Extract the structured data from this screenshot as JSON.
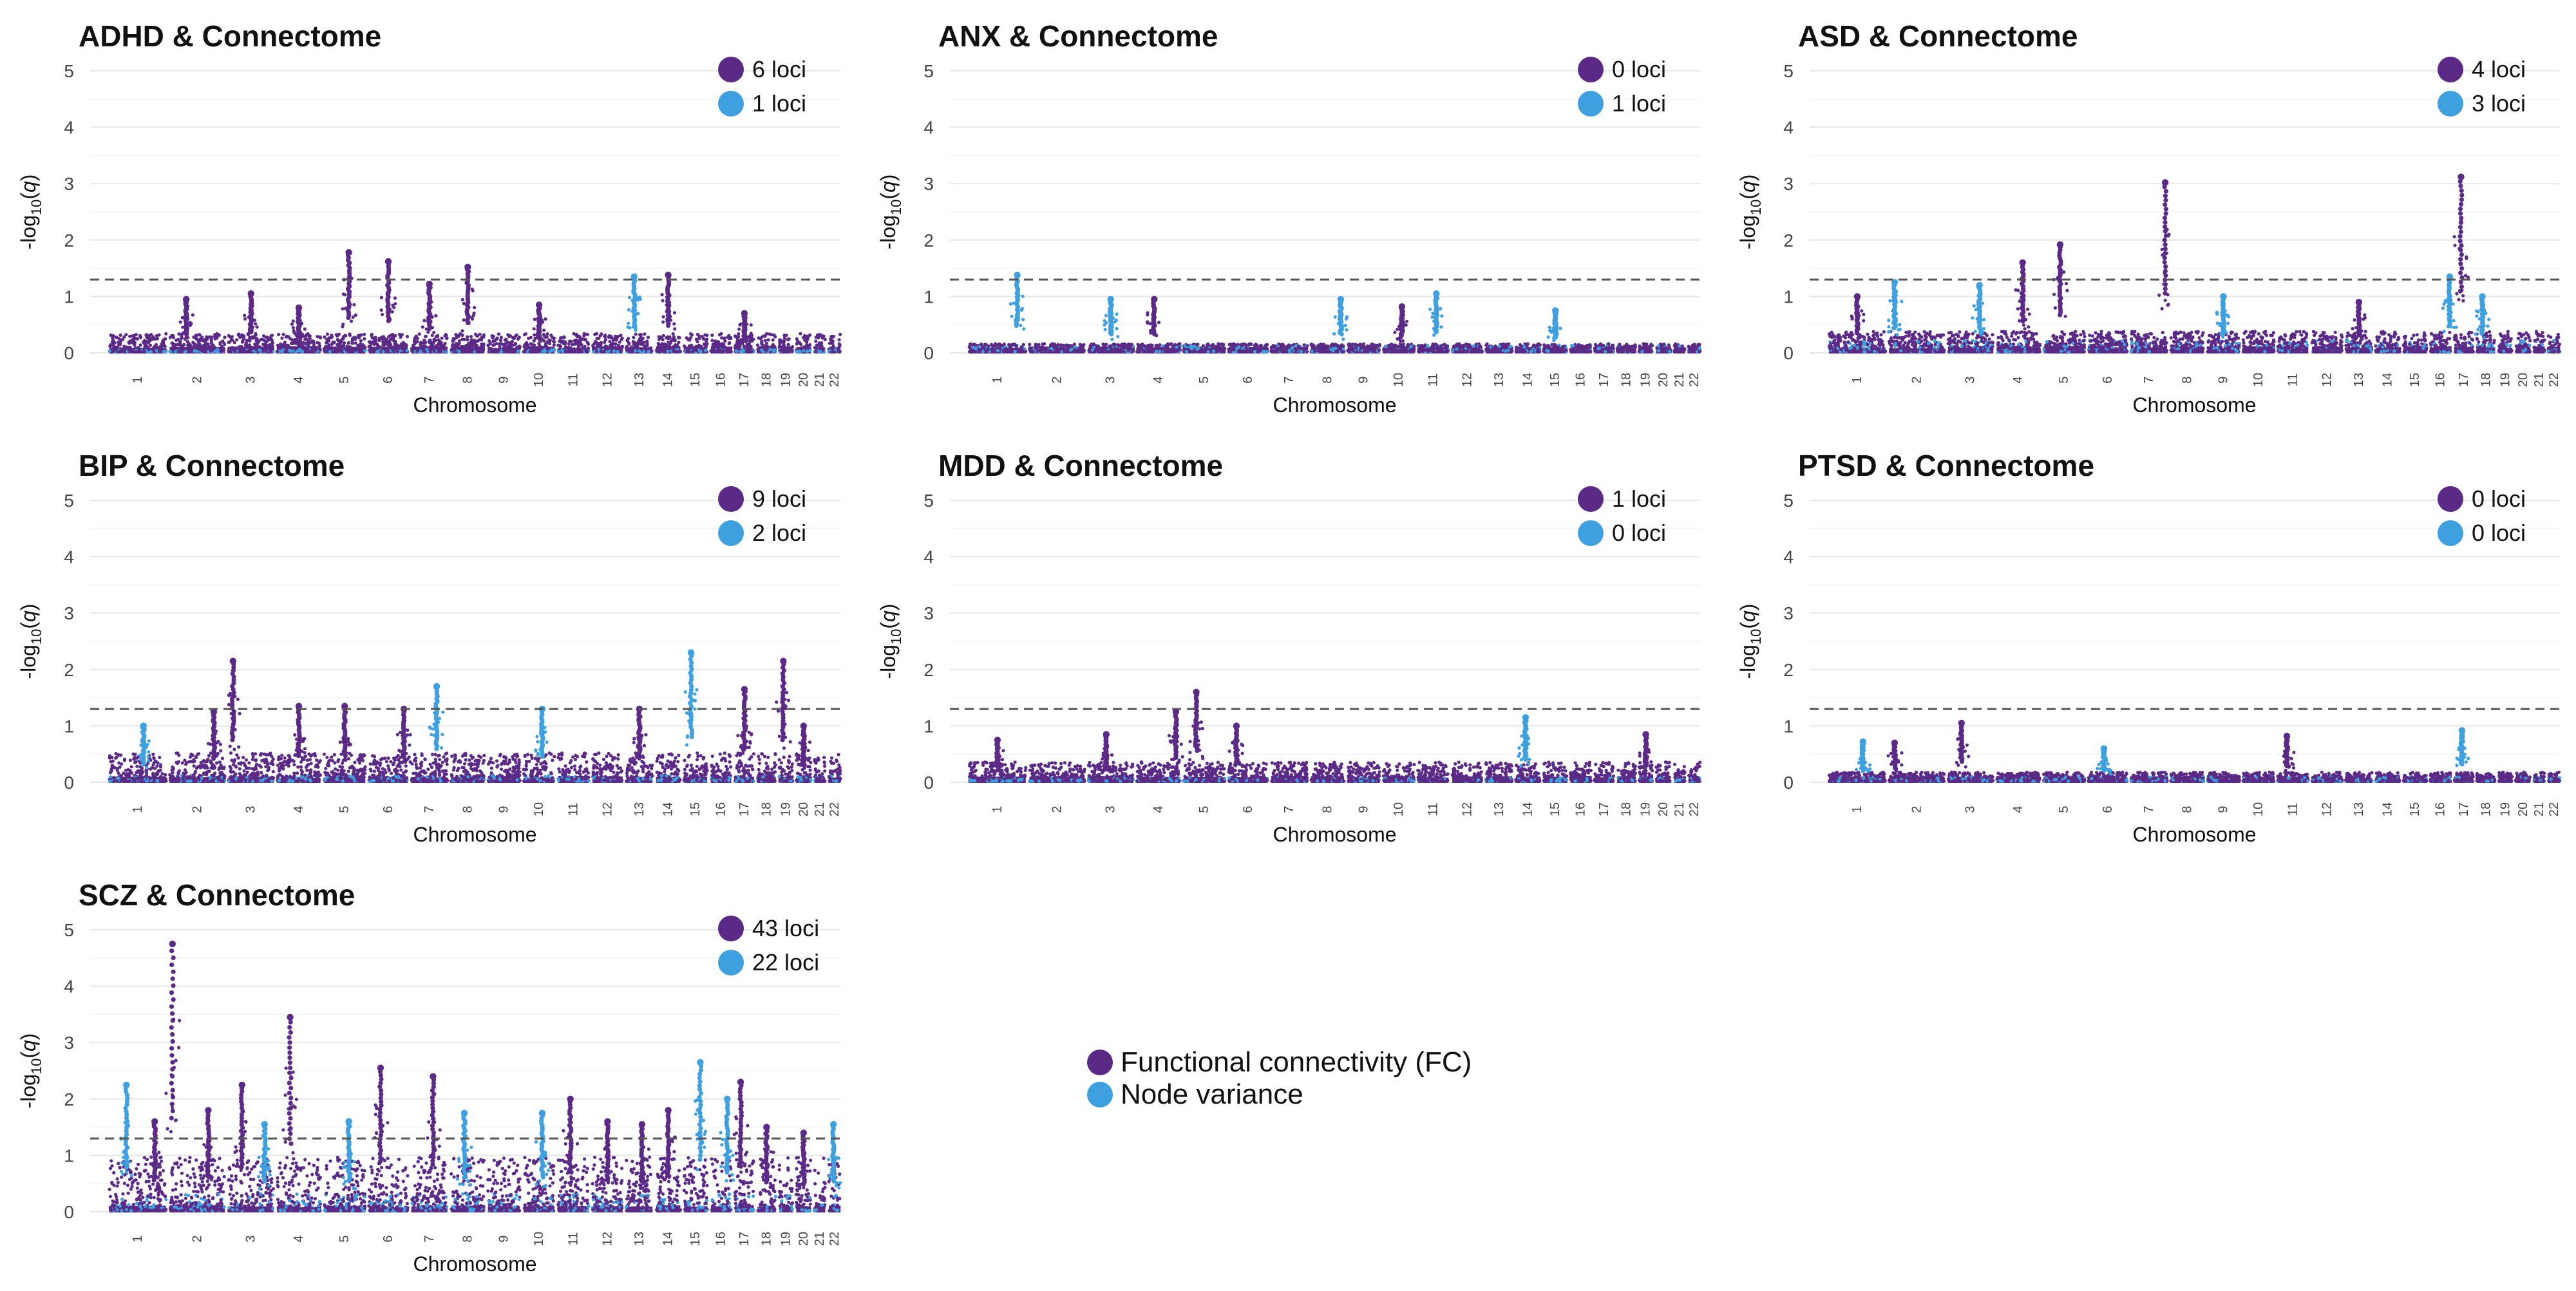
{
  "figure": {
    "shared_axes": {
      "ylabel_prefix": "-log",
      "ylabel_sub": "10",
      "ylabel_open": "(",
      "ylabel_var": "q",
      "ylabel_close": ")",
      "xlabel": "Chromosome",
      "yticks": [
        0,
        1,
        2,
        3,
        4,
        5
      ],
      "ylim": [
        0,
        5
      ],
      "chromosomes": [
        "1",
        "2",
        "3",
        "4",
        "5",
        "6",
        "7",
        "8",
        "9",
        "10",
        "11",
        "12",
        "13",
        "14",
        "15",
        "16",
        "17",
        "18",
        "19",
        "20",
        "21",
        "22"
      ],
      "threshold": 1.3
    },
    "legend": {
      "items": [
        {
          "label": "Functional connectivity (FC)",
          "color": "#5b2a86"
        },
        {
          "label": "Node variance",
          "color": "#3fa0e0"
        }
      ]
    }
  },
  "chart_data": [
    {
      "type": "scatter",
      "title": "ADHD & Connectome",
      "xlabel": "Chromosome",
      "ylabel": "-log10(q)",
      "ylim": [
        0,
        5
      ],
      "threshold": 1.3,
      "legend": [
        {
          "label": "6 loci",
          "color": "#5b2a86"
        },
        {
          "label": "1 loci",
          "color": "#3fa0e0"
        }
      ],
      "noise": {
        "fc": 0.32,
        "nv": 0.04
      },
      "peaks": [
        {
          "chr": 2,
          "pos": 0.3,
          "value": 0.95,
          "series": "fc"
        },
        {
          "chr": 3,
          "pos": 0.5,
          "value": 1.05,
          "series": "fc"
        },
        {
          "chr": 4,
          "pos": 0.5,
          "value": 0.8,
          "series": "fc"
        },
        {
          "chr": 5,
          "pos": 0.6,
          "value": 1.78,
          "series": "fc"
        },
        {
          "chr": 6,
          "pos": 0.5,
          "value": 1.62,
          "series": "fc"
        },
        {
          "chr": 7,
          "pos": 0.5,
          "value": 1.22,
          "series": "fc"
        },
        {
          "chr": 8,
          "pos": 0.5,
          "value": 1.52,
          "series": "fc"
        },
        {
          "chr": 10,
          "pos": 0.5,
          "value": 0.85,
          "series": "fc"
        },
        {
          "chr": 13,
          "pos": 0.3,
          "value": 1.35,
          "series": "nv"
        },
        {
          "chr": 14,
          "pos": 0.5,
          "value": 1.38,
          "series": "fc"
        },
        {
          "chr": 17,
          "pos": 0.5,
          "value": 0.7,
          "series": "fc"
        }
      ]
    },
    {
      "type": "scatter",
      "title": "ANX & Connectome",
      "xlabel": "Chromosome",
      "ylabel": "-log10(q)",
      "ylim": [
        0,
        5
      ],
      "threshold": 1.3,
      "legend": [
        {
          "label": "0 loci",
          "color": "#5b2a86"
        },
        {
          "label": "1 loci",
          "color": "#3fa0e0"
        }
      ],
      "noise": {
        "fc": 0.14,
        "nv": 0.12
      },
      "peaks": [
        {
          "chr": 1,
          "pos": 0.85,
          "value": 1.38,
          "series": "nv"
        },
        {
          "chr": 3,
          "pos": 0.5,
          "value": 0.95,
          "series": "nv"
        },
        {
          "chr": 4,
          "pos": 0.4,
          "value": 0.95,
          "series": "fc"
        },
        {
          "chr": 8,
          "pos": 0.9,
          "value": 0.95,
          "series": "nv"
        },
        {
          "chr": 10,
          "pos": 0.6,
          "value": 0.82,
          "series": "fc"
        },
        {
          "chr": 11,
          "pos": 0.6,
          "value": 1.05,
          "series": "nv"
        },
        {
          "chr": 15,
          "pos": 0.5,
          "value": 0.75,
          "series": "nv"
        }
      ]
    },
    {
      "type": "scatter",
      "title": "ASD & Connectome",
      "xlabel": "Chromosome",
      "ylabel": "-log10(q)",
      "ylim": [
        0,
        5
      ],
      "threshold": 1.3,
      "legend": [
        {
          "label": "4 loci",
          "color": "#5b2a86"
        },
        {
          "label": "3 loci",
          "color": "#3fa0e0"
        }
      ],
      "noise": {
        "fc": 0.36,
        "nv": 0.2
      },
      "peaks": [
        {
          "chr": 1,
          "pos": 0.5,
          "value": 1.0,
          "series": "fc"
        },
        {
          "chr": 2,
          "pos": 0.1,
          "value": 1.25,
          "series": "nv"
        },
        {
          "chr": 3,
          "pos": 0.7,
          "value": 1.2,
          "series": "nv"
        },
        {
          "chr": 4,
          "pos": 0.6,
          "value": 1.6,
          "series": "fc"
        },
        {
          "chr": 5,
          "pos": 0.4,
          "value": 1.92,
          "series": "fc"
        },
        {
          "chr": 7,
          "pos": 0.95,
          "value": 3.02,
          "series": "fc"
        },
        {
          "chr": 9,
          "pos": 0.5,
          "value": 1.0,
          "series": "nv"
        },
        {
          "chr": 13,
          "pos": 0.5,
          "value": 0.9,
          "series": "fc"
        },
        {
          "chr": 16,
          "pos": 0.95,
          "value": 1.35,
          "series": "nv"
        },
        {
          "chr": 17,
          "pos": 0.35,
          "value": 3.12,
          "series": "fc"
        },
        {
          "chr": 18,
          "pos": 0.3,
          "value": 1.0,
          "series": "nv"
        }
      ]
    },
    {
      "type": "scatter",
      "title": "BIP & Connectome",
      "xlabel": "Chromosome",
      "ylabel": "-log10(q)",
      "ylim": [
        0,
        5
      ],
      "threshold": 1.3,
      "legend": [
        {
          "label": "9 loci",
          "color": "#5b2a86"
        },
        {
          "label": "2 loci",
          "color": "#3fa0e0"
        }
      ],
      "noise": {
        "fc": 0.5,
        "nv": 0.1
      },
      "peaks": [
        {
          "chr": 1,
          "pos": 0.6,
          "value": 1.0,
          "series": "nv"
        },
        {
          "chr": 2,
          "pos": 0.8,
          "value": 1.25,
          "series": "fc"
        },
        {
          "chr": 3,
          "pos": 0.1,
          "value": 2.15,
          "series": "fc"
        },
        {
          "chr": 4,
          "pos": 0.5,
          "value": 1.35,
          "series": "fc"
        },
        {
          "chr": 5,
          "pos": 0.5,
          "value": 1.35,
          "series": "fc"
        },
        {
          "chr": 6,
          "pos": 0.9,
          "value": 1.3,
          "series": "fc"
        },
        {
          "chr": 7,
          "pos": 0.7,
          "value": 1.7,
          "series": "nv"
        },
        {
          "chr": 10,
          "pos": 0.6,
          "value": 1.3,
          "series": "nv"
        },
        {
          "chr": 13,
          "pos": 0.5,
          "value": 1.3,
          "series": "fc"
        },
        {
          "chr": 15,
          "pos": 0.3,
          "value": 2.3,
          "series": "nv"
        },
        {
          "chr": 17,
          "pos": 0.5,
          "value": 1.65,
          "series": "fc"
        },
        {
          "chr": 19,
          "pos": 0.3,
          "value": 2.15,
          "series": "fc"
        },
        {
          "chr": 20,
          "pos": 0.5,
          "value": 1.0,
          "series": "fc"
        }
      ]
    },
    {
      "type": "scatter",
      "title": "MDD & Connectome",
      "xlabel": "Chromosome",
      "ylabel": "-log10(q)",
      "ylim": [
        0,
        5
      ],
      "threshold": 1.3,
      "legend": [
        {
          "label": "1 loci",
          "color": "#5b2a86"
        },
        {
          "label": "0 loci",
          "color": "#3fa0e0"
        }
      ],
      "noise": {
        "fc": 0.34,
        "nv": 0.06
      },
      "peaks": [
        {
          "chr": 1,
          "pos": 0.5,
          "value": 0.75,
          "series": "fc"
        },
        {
          "chr": 3,
          "pos": 0.4,
          "value": 0.85,
          "series": "fc"
        },
        {
          "chr": 4,
          "pos": 0.9,
          "value": 1.25,
          "series": "fc"
        },
        {
          "chr": 5,
          "pos": 0.3,
          "value": 1.6,
          "series": "fc"
        },
        {
          "chr": 6,
          "pos": 0.2,
          "value": 1.0,
          "series": "fc"
        },
        {
          "chr": 14,
          "pos": 0.4,
          "value": 1.15,
          "series": "nv"
        },
        {
          "chr": 19,
          "pos": 0.5,
          "value": 0.85,
          "series": "fc"
        }
      ]
    },
    {
      "type": "scatter",
      "title": "PTSD & Connectome",
      "xlabel": "Chromosome",
      "ylabel": "-log10(q)",
      "ylim": [
        0,
        5
      ],
      "threshold": 1.3,
      "legend": [
        {
          "label": "0 loci",
          "color": "#5b2a86"
        },
        {
          "label": "0 loci",
          "color": "#3fa0e0"
        }
      ],
      "noise": {
        "fc": 0.16,
        "nv": 0.08
      },
      "peaks": [
        {
          "chr": 1,
          "pos": 0.6,
          "value": 0.72,
          "series": "nv"
        },
        {
          "chr": 2,
          "pos": 0.1,
          "value": 0.7,
          "series": "fc"
        },
        {
          "chr": 3,
          "pos": 0.3,
          "value": 1.05,
          "series": "fc"
        },
        {
          "chr": 6,
          "pos": 0.4,
          "value": 0.6,
          "series": "nv"
        },
        {
          "chr": 11,
          "pos": 0.3,
          "value": 0.82,
          "series": "fc"
        },
        {
          "chr": 17,
          "pos": 0.4,
          "value": 0.92,
          "series": "nv"
        }
      ]
    },
    {
      "type": "scatter",
      "title": "SCZ & Connectome",
      "xlabel": "Chromosome",
      "ylabel": "-log10(q)",
      "ylim": [
        0,
        5
      ],
      "threshold": 1.3,
      "legend": [
        {
          "label": "43 loci",
          "color": "#5b2a86"
        },
        {
          "label": "22 loci",
          "color": "#3fa0e0"
        }
      ],
      "noise": {
        "fc": 0.95,
        "nv": 0.3
      },
      "peaks": [
        {
          "chr": 1,
          "pos": 0.3,
          "value": 2.25,
          "series": "nv"
        },
        {
          "chr": 1,
          "pos": 0.8,
          "value": 1.6,
          "series": "fc"
        },
        {
          "chr": 2,
          "pos": 0.05,
          "value": 4.75,
          "series": "fc"
        },
        {
          "chr": 2,
          "pos": 0.7,
          "value": 1.8,
          "series": "fc"
        },
        {
          "chr": 3,
          "pos": 0.3,
          "value": 2.25,
          "series": "fc"
        },
        {
          "chr": 3,
          "pos": 0.8,
          "value": 1.55,
          "series": "nv"
        },
        {
          "chr": 4,
          "pos": 0.3,
          "value": 3.45,
          "series": "fc"
        },
        {
          "chr": 5,
          "pos": 0.6,
          "value": 1.6,
          "series": "nv"
        },
        {
          "chr": 6,
          "pos": 0.3,
          "value": 2.55,
          "series": "fc"
        },
        {
          "chr": 7,
          "pos": 0.6,
          "value": 2.4,
          "series": "fc"
        },
        {
          "chr": 8,
          "pos": 0.4,
          "value": 1.75,
          "series": "nv"
        },
        {
          "chr": 10,
          "pos": 0.6,
          "value": 1.75,
          "series": "nv"
        },
        {
          "chr": 11,
          "pos": 0.4,
          "value": 2.0,
          "series": "fc"
        },
        {
          "chr": 12,
          "pos": 0.5,
          "value": 1.6,
          "series": "fc"
        },
        {
          "chr": 13,
          "pos": 0.6,
          "value": 1.55,
          "series": "fc"
        },
        {
          "chr": 14,
          "pos": 0.5,
          "value": 1.8,
          "series": "fc"
        },
        {
          "chr": 15,
          "pos": 0.7,
          "value": 2.65,
          "series": "nv"
        },
        {
          "chr": 16,
          "pos": 0.8,
          "value": 2.0,
          "series": "nv"
        },
        {
          "chr": 17,
          "pos": 0.3,
          "value": 2.3,
          "series": "fc"
        },
        {
          "chr": 18,
          "pos": 0.5,
          "value": 1.5,
          "series": "fc"
        },
        {
          "chr": 20,
          "pos": 0.5,
          "value": 1.4,
          "series": "fc"
        },
        {
          "chr": 22,
          "pos": 0.4,
          "value": 1.55,
          "series": "nv"
        }
      ]
    }
  ]
}
